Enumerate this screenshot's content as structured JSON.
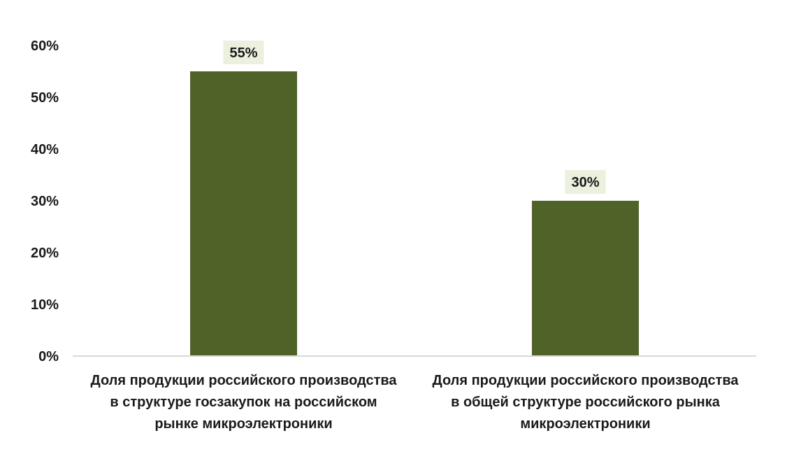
{
  "chart_data": {
    "type": "bar",
    "categories": [
      [
        "Доля продукции российского производства",
        "в структуре госзакупок на российском",
        "рынке микроэлектроники"
      ],
      [
        "Доля продукции российского производства",
        "в общей структуре российского рынка",
        "микроэлектроники"
      ]
    ],
    "values": [
      55,
      30
    ],
    "data_labels": [
      "55%",
      "30%"
    ],
    "yticks": [
      {
        "value": 0,
        "label": "0%"
      },
      {
        "value": 10,
        "label": "10%"
      },
      {
        "value": 20,
        "label": "20%"
      },
      {
        "value": 30,
        "label": "30%"
      },
      {
        "value": 40,
        "label": "40%"
      },
      {
        "value": 50,
        "label": "50%"
      },
      {
        "value": 60,
        "label": "60%"
      }
    ],
    "ylim": [
      0,
      60
    ],
    "grid": false,
    "title": "",
    "xlabel": "",
    "ylabel": "",
    "colors": {
      "bar": "#4f6228",
      "data_label_bg": "#ebf1de",
      "axis": "#d9d9d9",
      "text": "#1a1a1a"
    }
  }
}
